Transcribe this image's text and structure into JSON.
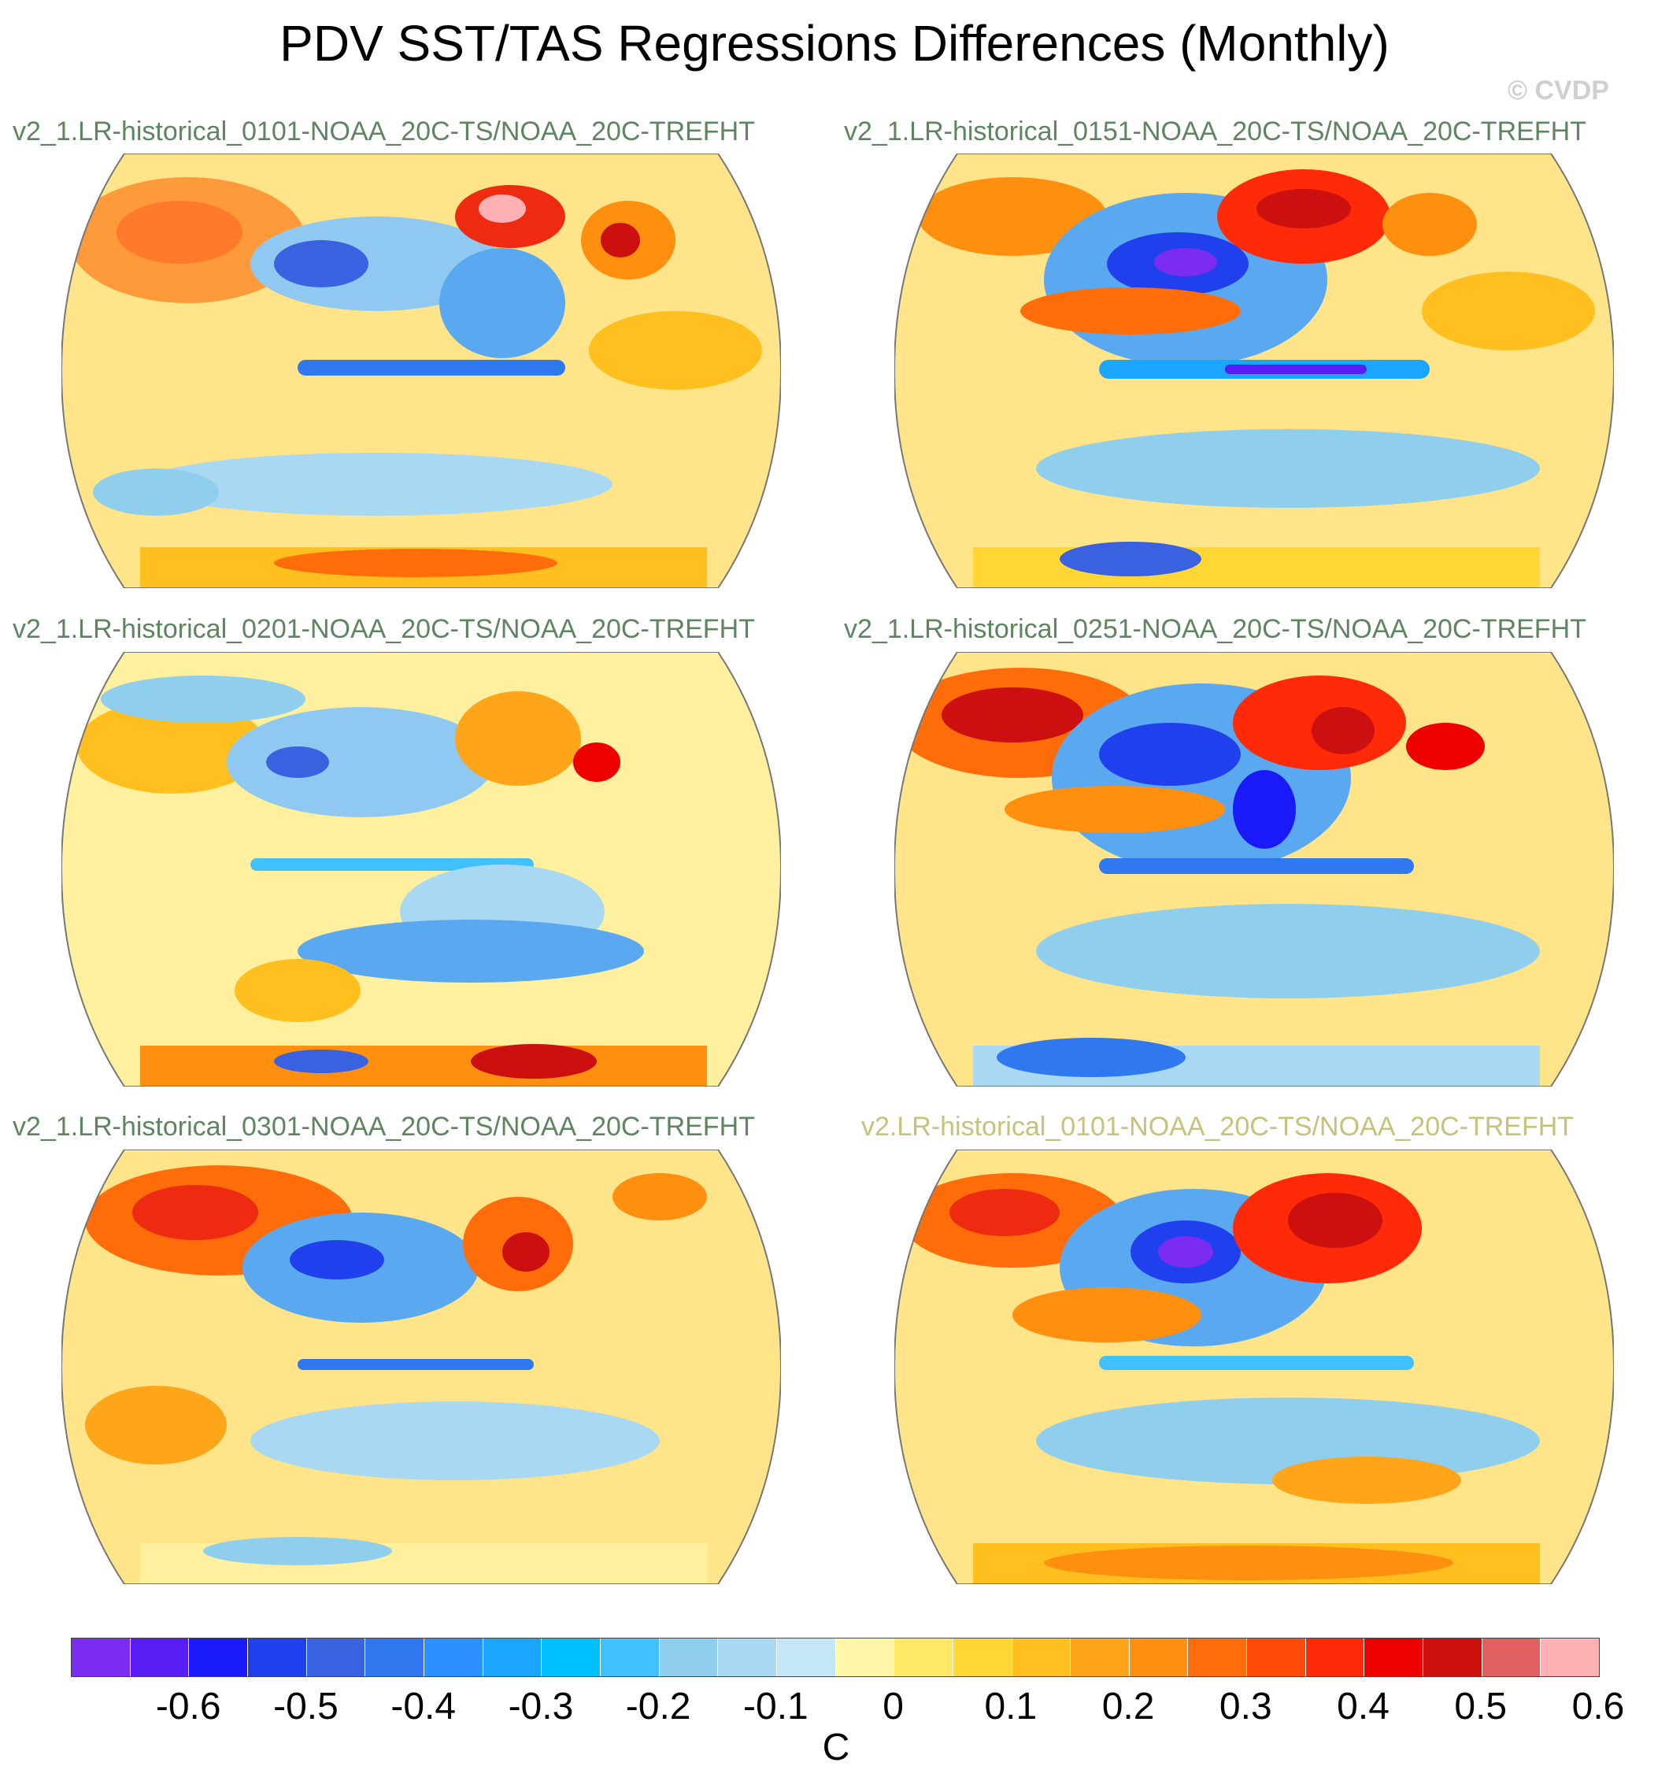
{
  "title": "PDV SST/TAS Regressions Differences (Monthly)",
  "watermark": "© CVDP",
  "panels": [
    {
      "label": "v2_1.LR-historical_0101-NOAA_20C-TS/NOAA_20C-TREFHT"
    },
    {
      "label": "v2_1.LR-historical_0151-NOAA_20C-TS/NOAA_20C-TREFHT"
    },
    {
      "label": "v2_1.LR-historical_0201-NOAA_20C-TS/NOAA_20C-TREFHT"
    },
    {
      "label": "v2_1.LR-historical_0251-NOAA_20C-TS/NOAA_20C-TREFHT"
    },
    {
      "label": "v2_1.LR-historical_0301-NOAA_20C-TS/NOAA_20C-TREFHT"
    },
    {
      "label": "v2.LR-historical_0101-NOAA_20C-TS/NOAA_20C-TREFHT"
    }
  ],
  "colorbar": {
    "unit": "C",
    "colors": [
      "#7a2cf0",
      "#5a1cf5",
      "#1a1af8",
      "#2040ee",
      "#3a62e0",
      "#2f78f0",
      "#2a90ff",
      "#1aa6ff",
      "#00bfff",
      "#40c0ff",
      "#90ceee",
      "#a8d8f2",
      "#c4e6f6",
      "#fff6a8",
      "#ffe866",
      "#ffd634",
      "#ffbf1f",
      "#ffa51a",
      "#ff8f0e",
      "#ff6d0a",
      "#ff4a0a",
      "#ff2a08",
      "#ee0000",
      "#cc1010",
      "#e26060",
      "#ffb0b4"
    ],
    "ticks": [
      "-0.6",
      "-0.5",
      "-0.4",
      "-0.3",
      "-0.2",
      "-0.1",
      "0",
      "0.1",
      "0.2",
      "0.3",
      "0.4",
      "0.5",
      "0.6"
    ]
  }
}
